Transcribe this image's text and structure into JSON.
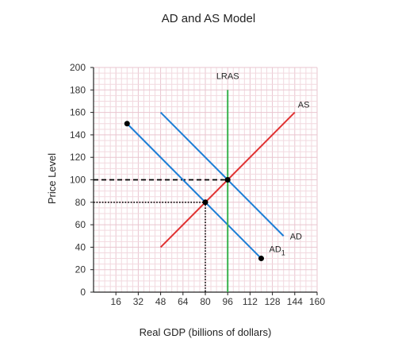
{
  "chart_data": {
    "type": "line",
    "title": "AD and AS Model",
    "xlabel": "Real GDP (billions of dollars)",
    "ylabel": "Price Level",
    "xlim": [
      0,
      160
    ],
    "ylim": [
      0,
      200
    ],
    "xticks": [
      16,
      32,
      48,
      64,
      80,
      96,
      112,
      128,
      144,
      160
    ],
    "yticks": [
      0,
      20,
      40,
      60,
      80,
      100,
      120,
      140,
      160,
      180,
      200
    ],
    "grid": true,
    "colors": {
      "as": "#e03131",
      "ad": "#1c7ed6",
      "ad1": "#1c7ed6",
      "lras": "#37b24d",
      "guides": "#000000",
      "grid": "#f2d9df"
    },
    "series": [
      {
        "key": "as",
        "name": "AS",
        "points": [
          [
            48,
            40
          ],
          [
            144,
            160
          ]
        ]
      },
      {
        "key": "ad",
        "name": "AD",
        "points": [
          [
            48,
            160
          ],
          [
            136,
            50
          ]
        ]
      },
      {
        "key": "ad1",
        "name": "AD",
        "subscript": "1",
        "points": [
          [
            24,
            150
          ],
          [
            120,
            30
          ]
        ]
      },
      {
        "key": "lras",
        "name": "LRAS",
        "points": [
          [
            96,
            0
          ],
          [
            96,
            180
          ]
        ]
      }
    ],
    "markers": [
      [
        24,
        150
      ],
      [
        120,
        30
      ],
      [
        80,
        80
      ],
      [
        96,
        100
      ]
    ],
    "guides": [
      {
        "style": "dashed",
        "points": [
          [
            0,
            100
          ],
          [
            96,
            100
          ]
        ]
      },
      {
        "style": "dotted",
        "points": [
          [
            0,
            80
          ],
          [
            80,
            80
          ],
          [
            80,
            0
          ]
        ]
      }
    ]
  }
}
